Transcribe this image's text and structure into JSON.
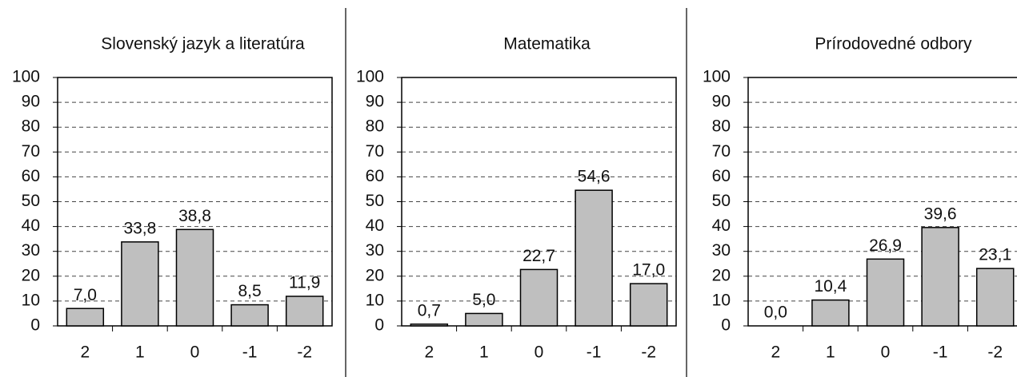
{
  "chart_data": [
    {
      "type": "bar",
      "title": "Slovenský jazyk a literatúra",
      "categories": [
        "2",
        "1",
        "0",
        "-1",
        "-2"
      ],
      "values": [
        7.0,
        33.8,
        38.8,
        8.5,
        11.9
      ],
      "value_labels": [
        "7,0",
        "33,8",
        "38,8",
        "8,5",
        "11,9"
      ],
      "color": "#bfbfbf",
      "ylim": [
        0,
        100
      ],
      "yticks": [
        0,
        10,
        20,
        30,
        40,
        50,
        60,
        70,
        80,
        90,
        100
      ],
      "grid": true
    },
    {
      "type": "bar",
      "title": "Matematika",
      "categories": [
        "2",
        "1",
        "0",
        "-1",
        "-2"
      ],
      "values": [
        0.7,
        5.0,
        22.7,
        54.6,
        17.0
      ],
      "value_labels": [
        "0,7",
        "5,0",
        "22,7",
        "54,6",
        "17,0"
      ],
      "color": "#bfbfbf",
      "ylim": [
        0,
        100
      ],
      "yticks": [
        0,
        10,
        20,
        30,
        40,
        50,
        60,
        70,
        80,
        90,
        100
      ],
      "grid": true
    },
    {
      "type": "bar",
      "title": "Prírodovedné odbory",
      "categories": [
        "2",
        "1",
        "0",
        "-1",
        "-2"
      ],
      "values": [
        0.0,
        10.4,
        26.9,
        39.6,
        23.1
      ],
      "value_labels": [
        "0,0",
        "10,4",
        "26,9",
        "39,6",
        "23,1"
      ],
      "color": "#bfbfbf",
      "ylim": [
        0,
        100
      ],
      "yticks": [
        0,
        10,
        20,
        30,
        40,
        50,
        60,
        70,
        80,
        90,
        100
      ],
      "grid": true
    }
  ]
}
